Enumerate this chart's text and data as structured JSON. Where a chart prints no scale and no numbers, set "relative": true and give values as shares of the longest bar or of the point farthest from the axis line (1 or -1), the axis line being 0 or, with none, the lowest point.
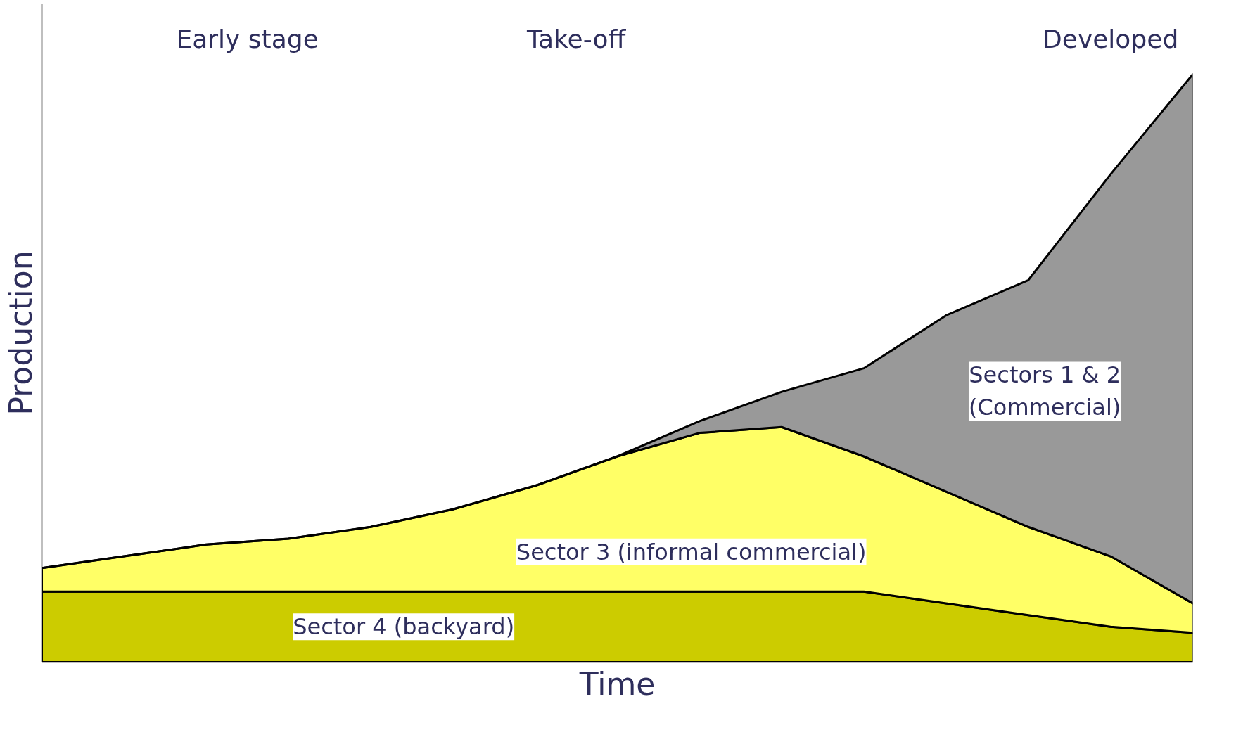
{
  "chart_data": {
    "type": "area",
    "stacked": true,
    "relative": true,
    "xlabel": "Time",
    "ylabel": "Production",
    "categories": [
      null,
      null,
      null,
      null,
      null,
      null,
      null,
      null,
      null,
      null,
      null,
      null,
      null,
      null,
      null
    ],
    "annotations": [
      "Early stage",
      "Take-off",
      "Developed"
    ],
    "series": [
      {
        "name": "Sector 4 (backyard)",
        "color": "#cccc00",
        "values": [
          0.12,
          0.12,
          0.12,
          0.12,
          0.12,
          0.12,
          0.12,
          0.12,
          0.12,
          0.12,
          0.12,
          0.1,
          0.08,
          0.06,
          0.05
        ]
      },
      {
        "name": "Sector 3 (informal commercial)",
        "color": "#ffff66",
        "values": [
          0.04,
          0.06,
          0.08,
          0.09,
          0.11,
          0.14,
          0.18,
          0.23,
          0.27,
          0.28,
          0.23,
          0.19,
          0.15,
          0.12,
          0.05
        ]
      },
      {
        "name": "Sectors 1 & 2\n(Commercial)",
        "color": "#999999",
        "values": [
          0,
          0,
          0,
          0,
          0,
          0,
          0,
          0,
          0.02,
          0.06,
          0.15,
          0.3,
          0.42,
          0.65,
          0.9
        ]
      }
    ]
  }
}
